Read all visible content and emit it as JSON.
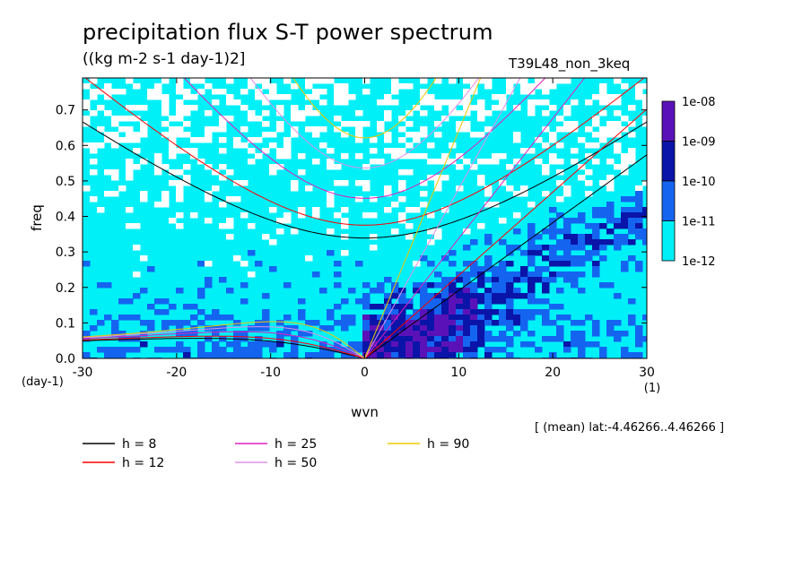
{
  "header": {
    "title": "precipitation flux S-T power spectrum",
    "subtitle": "((kg m-2 s-1 day-1)2]",
    "run": "T39L48_non_3keq",
    "mean_note": "[ (mean) lat:-4.46266..4.46266 ]"
  },
  "chart_data": {
    "type": "heatmap",
    "title": "precipitation flux S-T power spectrum",
    "subtitle": "((kg m-2 s-1 day-1)2]",
    "xlabel": "wvn",
    "ylabel": "freq",
    "x_unit": "(1)",
    "y_unit": "(day-1)",
    "xlim": [
      -30,
      30
    ],
    "ylim": [
      0,
      0.79
    ],
    "x_ticks": [
      -30,
      -20,
      -10,
      0,
      10,
      20,
      30
    ],
    "x_tick_labels": [
      "-30",
      "-20",
      "-10",
      "0",
      "10",
      "20",
      "30"
    ],
    "y_ticks": [
      0.0,
      0.1,
      0.2,
      0.3,
      0.4,
      0.5,
      0.6,
      0.7
    ],
    "y_tick_labels": [
      "0.0",
      "0.1",
      "0.2",
      "0.3",
      "0.4",
      "0.5",
      "0.6",
      "0.7"
    ],
    "colorbar": {
      "labels": [
        "1e-08",
        "1e-09",
        "1e-10",
        "1e-11",
        "1e-12"
      ],
      "colors": [
        "#5a12b8",
        "#0a14a8",
        "#1464f0",
        "#00f0f8"
      ]
    },
    "level_colors": [
      "#ffffff",
      "#00f0f8",
      "#1464f0",
      "#0a14a8",
      "#5a12b8"
    ],
    "dispersion_curves": [
      {
        "label": "h =  8",
        "h": 8,
        "color": "#000000"
      },
      {
        "label": "h = 12",
        "h": 12,
        "color": "#ff0000"
      },
      {
        "label": "h = 25",
        "h": 25,
        "color": "#e020c0"
      },
      {
        "label": "h = 50",
        "h": 50,
        "color": "#e090e8"
      },
      {
        "label": "h = 90",
        "h": 90,
        "color": "#f0c800"
      }
    ],
    "grid": false,
    "legend_position": "bottom-left"
  }
}
